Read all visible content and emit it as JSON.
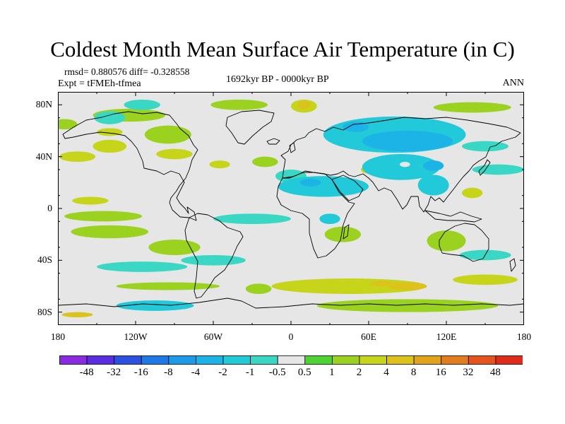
{
  "title": "Coldest Month Mean Surface Air Temperature (in C)",
  "stats": "rmsd= 0.880576 diff= -0.328558",
  "experiment": "Expt = tFMEh-tfmea",
  "period": "1692kyr BP - 0000kyr BP",
  "season": "ANN",
  "map": {
    "projection": "cylindrical equidistant",
    "lon_range": [
      -180,
      180
    ],
    "lat_range": [
      -90,
      90
    ],
    "background_color": "#e6e6e6",
    "coastline_color": "#000000",
    "lat_ticks": [
      {
        "value": 80,
        "label": "80N"
      },
      {
        "value": 40,
        "label": "40N"
      },
      {
        "value": 0,
        "label": "0"
      },
      {
        "value": -40,
        "label": "40S"
      },
      {
        "value": -80,
        "label": "80S"
      }
    ],
    "lon_ticks": [
      {
        "value": -180,
        "label": "180"
      },
      {
        "value": -120,
        "label": "120W"
      },
      {
        "value": -60,
        "label": "60W"
      },
      {
        "value": 0,
        "label": "0"
      },
      {
        "value": 60,
        "label": "60E"
      },
      {
        "value": 120,
        "label": "120E"
      },
      {
        "value": 180,
        "label": "180"
      }
    ]
  },
  "colorbar": {
    "colors": [
      "#8a2be2",
      "#5a2ee0",
      "#2c50e0",
      "#1f78e8",
      "#1d9ae8",
      "#1cb4e6",
      "#22c9d8",
      "#3ad8c4",
      "#e6e6e6",
      "#4ed432",
      "#9bd21f",
      "#c6d41a",
      "#dcc21a",
      "#e0a31a",
      "#e27c1c",
      "#e4541c",
      "#e02a1a"
    ],
    "labels": [
      "-48",
      "-32",
      "-16",
      "-8",
      "-4",
      "-2",
      "-1",
      "-0.5",
      "0.5",
      "1",
      "2",
      "4",
      "8",
      "16",
      "32",
      "48"
    ]
  },
  "anomaly_regions": [
    {
      "level": "1",
      "lon": -125,
      "lat": 72,
      "rx": 28,
      "ry": 5
    },
    {
      "level": "1",
      "lon": -175,
      "lat": 65,
      "rx": 10,
      "ry": 4
    },
    {
      "level": "1",
      "lon": -40,
      "lat": 80,
      "rx": 22,
      "ry": 4
    },
    {
      "level": "1",
      "lon": 140,
      "lat": 78,
      "rx": 30,
      "ry": 4
    },
    {
      "level": "1",
      "lon": -20,
      "lat": 36,
      "rx": 10,
      "ry": 4
    },
    {
      "level": "1",
      "lon": -95,
      "lat": 57,
      "rx": 18,
      "ry": 7
    },
    {
      "level": "2",
      "lon": 10,
      "lat": 79,
      "rx": 10,
      "ry": 5
    },
    {
      "level": "4",
      "lon": 10,
      "lat": 80,
      "rx": 5,
      "ry": 3
    },
    {
      "level": "2",
      "lon": -140,
      "lat": 59,
      "rx": 10,
      "ry": 3
    },
    {
      "level": "2",
      "lon": -140,
      "lat": 48,
      "rx": 13,
      "ry": 5
    },
    {
      "level": "2",
      "lon": -165,
      "lat": 40,
      "rx": 14,
      "ry": 4
    },
    {
      "level": "2",
      "lon": -90,
      "lat": 42,
      "rx": 14,
      "ry": 4
    },
    {
      "level": "2",
      "lon": -55,
      "lat": 34,
      "rx": 8,
      "ry": 3
    },
    {
      "level": "2",
      "lon": -155,
      "lat": 6,
      "rx": 14,
      "ry": 3
    },
    {
      "level": "1",
      "lon": -145,
      "lat": -6,
      "rx": 30,
      "ry": 4
    },
    {
      "level": "1",
      "lon": -140,
      "lat": -18,
      "rx": 30,
      "ry": 5
    },
    {
      "level": "1",
      "lon": -90,
      "lat": -30,
      "rx": 20,
      "ry": 6
    },
    {
      "level": "1",
      "lon": -95,
      "lat": -60,
      "rx": 40,
      "ry": 3
    },
    {
      "level": "1",
      "lon": -25,
      "lat": -62,
      "rx": 10,
      "ry": 4
    },
    {
      "level": "2",
      "lon": 45,
      "lat": -60,
      "rx": 60,
      "ry": 6
    },
    {
      "level": "1",
      "lon": 90,
      "lat": -75,
      "rx": 70,
      "ry": 5
    },
    {
      "level": "1",
      "lon": 120,
      "lat": -25,
      "rx": 15,
      "ry": 8
    },
    {
      "level": "1",
      "lon": 40,
      "lat": -20,
      "rx": 14,
      "ry": 6
    },
    {
      "level": "2",
      "lon": 150,
      "lat": -55,
      "rx": 25,
      "ry": 4
    },
    {
      "level": "2",
      "lon": 140,
      "lat": 12,
      "rx": 8,
      "ry": 4
    },
    {
      "level": "2",
      "lon": 60,
      "lat": 30,
      "rx": 6,
      "ry": 3
    },
    {
      "level": "4",
      "lon": 90,
      "lat": -60,
      "rx": 15,
      "ry": 3
    },
    {
      "level": "4",
      "lon": 70,
      "lat": -58,
      "rx": 8,
      "ry": 2
    },
    {
      "level": "4",
      "lon": -165,
      "lat": -82,
      "rx": 12,
      "ry": 2
    },
    {
      "level": "-0.5",
      "lon": 0,
      "lat": 25,
      "rx": 12,
      "ry": 5
    },
    {
      "level": "-0.5",
      "lon": -140,
      "lat": 70,
      "rx": 12,
      "ry": 5
    },
    {
      "level": "-0.5",
      "lon": -115,
      "lat": 80,
      "rx": 14,
      "ry": 4
    },
    {
      "level": "-0.5",
      "lon": -30,
      "lat": -8,
      "rx": 30,
      "ry": 4
    },
    {
      "level": "-0.5",
      "lon": -115,
      "lat": -45,
      "rx": 35,
      "ry": 4
    },
    {
      "level": "-0.5",
      "lon": -60,
      "lat": -40,
      "rx": 25,
      "ry": 4
    },
    {
      "level": "-0.5",
      "lon": 150,
      "lat": -36,
      "rx": 20,
      "ry": 4
    },
    {
      "level": "-0.5",
      "lon": 160,
      "lat": 30,
      "rx": 20,
      "ry": 4
    },
    {
      "level": "-0.5",
      "lon": 150,
      "lat": 48,
      "rx": 18,
      "ry": 4
    },
    {
      "level": "-1",
      "lon": 80,
      "lat": 57,
      "rx": 55,
      "ry": 14
    },
    {
      "level": "-1",
      "lon": 25,
      "lat": 17,
      "rx": 35,
      "ry": 8
    },
    {
      "level": "-1",
      "lon": 85,
      "lat": 32,
      "rx": 30,
      "ry": 10
    },
    {
      "level": "-1",
      "lon": 110,
      "lat": 18,
      "rx": 12,
      "ry": 8
    },
    {
      "level": "-1",
      "lon": 30,
      "lat": -8,
      "rx": 8,
      "ry": 4
    },
    {
      "level": "-1",
      "lon": -105,
      "lat": -75,
      "rx": 30,
      "ry": 4
    },
    {
      "level": "-2",
      "lon": 90,
      "lat": 52,
      "rx": 35,
      "ry": 8
    },
    {
      "level": "-2",
      "lon": 50,
      "lat": 63,
      "rx": 10,
      "ry": 4
    },
    {
      "level": "-2",
      "lon": 110,
      "lat": 33,
      "rx": 8,
      "ry": 4
    },
    {
      "level": "-2",
      "lon": 15,
      "lat": 20,
      "rx": 8,
      "ry": 3
    }
  ],
  "anomaly_holes": [
    {
      "lon": 88,
      "lat": 34,
      "rx": 4,
      "ry": 2
    }
  ]
}
